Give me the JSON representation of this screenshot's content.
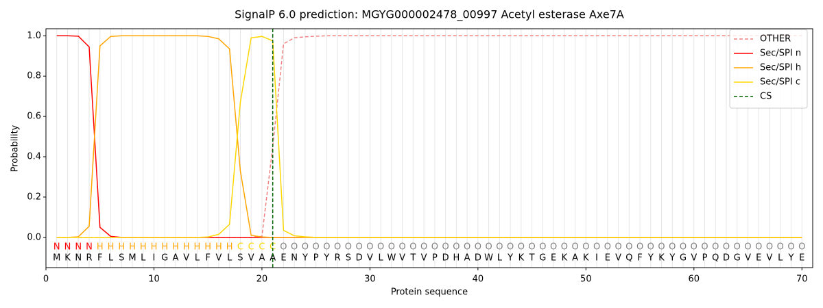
{
  "chart_data": {
    "type": "line",
    "title": "SignalP 6.0 prediction: MGYG000002478_00997 Acetyl esterase Axe7A",
    "x_label": "Protein sequence",
    "y_label": "Probability",
    "xlim": [
      0,
      71
    ],
    "ylim": [
      -0.15,
      1.035
    ],
    "xticks": [
      0,
      10,
      20,
      30,
      40,
      50,
      60,
      70
    ],
    "yticks": [
      {
        "value": 0,
        "label": "0.0"
      },
      {
        "value": 0.2,
        "label": "0.2"
      },
      {
        "value": 0.4,
        "label": "0.4"
      },
      {
        "value": 0.6,
        "label": "0.6"
      },
      {
        "value": 0.8,
        "label": "0.8"
      },
      {
        "value": 1,
        "label": "1.0"
      }
    ],
    "legend_position": "upper right",
    "x": [
      1,
      2,
      3,
      4,
      5,
      6,
      7,
      8,
      9,
      10,
      11,
      12,
      13,
      14,
      15,
      16,
      17,
      18,
      19,
      20,
      21,
      22,
      23,
      24,
      25,
      26,
      27,
      28,
      29,
      30,
      31,
      32,
      33,
      34,
      35,
      36,
      37,
      38,
      39,
      40,
      41,
      42,
      43,
      44,
      45,
      46,
      47,
      48,
      49,
      50,
      51,
      52,
      53,
      54,
      55,
      56,
      57,
      58,
      59,
      60,
      61,
      62,
      63,
      64,
      65,
      66,
      67,
      68,
      69,
      70
    ],
    "residues": [
      "M",
      "K",
      "N",
      "R",
      "F",
      "L",
      "S",
      "M",
      "L",
      "I",
      "G",
      "A",
      "V",
      "L",
      "F",
      "V",
      "L",
      "S",
      "V",
      "A",
      "A",
      "E",
      "N",
      "Y",
      "P",
      "Y",
      "R",
      "S",
      "D",
      "V",
      "L",
      "W",
      "V",
      "T",
      "V",
      "P",
      "D",
      "H",
      "A",
      "D",
      "W",
      "L",
      "Y",
      "K",
      "T",
      "G",
      "E",
      "K",
      "A",
      "K",
      "I",
      "E",
      "V",
      "Q",
      "F",
      "Y",
      "K",
      "Y",
      "G",
      "V",
      "P",
      "Q",
      "D",
      "G",
      "V",
      "E",
      "V",
      "L",
      "Y",
      "E"
    ],
    "labels": [
      "N",
      "N",
      "N",
      "N",
      "H",
      "H",
      "H",
      "H",
      "H",
      "H",
      "H",
      "H",
      "H",
      "H",
      "H",
      "H",
      "H",
      "C",
      "C",
      "C",
      "C",
      "O",
      "O",
      "O",
      "O",
      "O",
      "O",
      "O",
      "O",
      "O",
      "O",
      "O",
      "O",
      "O",
      "O",
      "O",
      "O",
      "O",
      "O",
      "O",
      "O",
      "O",
      "O",
      "O",
      "O",
      "O",
      "O",
      "O",
      "O",
      "O",
      "O",
      "O",
      "O",
      "O",
      "O",
      "O",
      "O",
      "O",
      "O",
      "O",
      "O",
      "O",
      "O",
      "O",
      "O",
      "O",
      "O",
      "O",
      "O",
      "O"
    ],
    "label_colors": {
      "N": "#ff0000",
      "H": "#ffa500",
      "C": "#ffd700",
      "O": "#808080"
    },
    "series": [
      {
        "name": "OTHER",
        "color": "#f08080",
        "dashed": true,
        "values": [
          0,
          0,
          0,
          0,
          0,
          0,
          0,
          0,
          0,
          0,
          0,
          0,
          0,
          0,
          0,
          0,
          0,
          0,
          0,
          0.005,
          0.45,
          0.96,
          0.99,
          0.995,
          0.998,
          1,
          1,
          1,
          1,
          1,
          1,
          1,
          1,
          1,
          1,
          1,
          1,
          1,
          1,
          1,
          1,
          1,
          1,
          1,
          1,
          1,
          1,
          1,
          1,
          1,
          1,
          1,
          1,
          1,
          1,
          1,
          1,
          1,
          1,
          1,
          1,
          1,
          1,
          1,
          1,
          1,
          1,
          1,
          1,
          1
        ]
      },
      {
        "name": "Sec/SPI n",
        "color": "#ff0000",
        "values": [
          1,
          1,
          0.998,
          0.945,
          0.05,
          0.005,
          0,
          0,
          0,
          0,
          0,
          0,
          0,
          0,
          0,
          0,
          0,
          0,
          0,
          0,
          0,
          0,
          0,
          0,
          0,
          0,
          0,
          0,
          0,
          0,
          0,
          0,
          0,
          0,
          0,
          0,
          0,
          0,
          0,
          0,
          0,
          0,
          0,
          0,
          0,
          0,
          0,
          0,
          0,
          0,
          0,
          0,
          0,
          0,
          0,
          0,
          0,
          0,
          0,
          0,
          0,
          0,
          0,
          0,
          0,
          0,
          0,
          0,
          0,
          0
        ]
      },
      {
        "name": "Sec/SPI h",
        "color": "#ffa500",
        "values": [
          0,
          0,
          0.003,
          0.055,
          0.95,
          0.997,
          1,
          1,
          1,
          1,
          1,
          1,
          1,
          1,
          0.997,
          0.985,
          0.935,
          0.33,
          0.01,
          0.002,
          0,
          0,
          0,
          0,
          0,
          0,
          0,
          0,
          0,
          0,
          0,
          0,
          0,
          0,
          0,
          0,
          0,
          0,
          0,
          0,
          0,
          0,
          0,
          0,
          0,
          0,
          0,
          0,
          0,
          0,
          0,
          0,
          0,
          0,
          0,
          0,
          0,
          0,
          0,
          0,
          0,
          0,
          0,
          0,
          0,
          0,
          0,
          0,
          0,
          0
        ]
      },
      {
        "name": "Sec/SPI c",
        "color": "#ffd700",
        "values": [
          0,
          0,
          0,
          0,
          0,
          0,
          0,
          0,
          0,
          0,
          0,
          0,
          0,
          0,
          0.002,
          0.015,
          0.065,
          0.67,
          0.99,
          0.997,
          0.975,
          0.035,
          0.008,
          0.003,
          0,
          0,
          0,
          0,
          0,
          0,
          0,
          0,
          0,
          0,
          0,
          0,
          0,
          0,
          0,
          0,
          0,
          0,
          0,
          0,
          0,
          0,
          0,
          0,
          0,
          0,
          0,
          0,
          0,
          0,
          0,
          0,
          0,
          0,
          0,
          0,
          0,
          0,
          0,
          0,
          0,
          0,
          0,
          0,
          0,
          0
        ]
      }
    ],
    "vlines": [
      {
        "name": "CS",
        "color": "#006400",
        "x": 21
      }
    ]
  }
}
